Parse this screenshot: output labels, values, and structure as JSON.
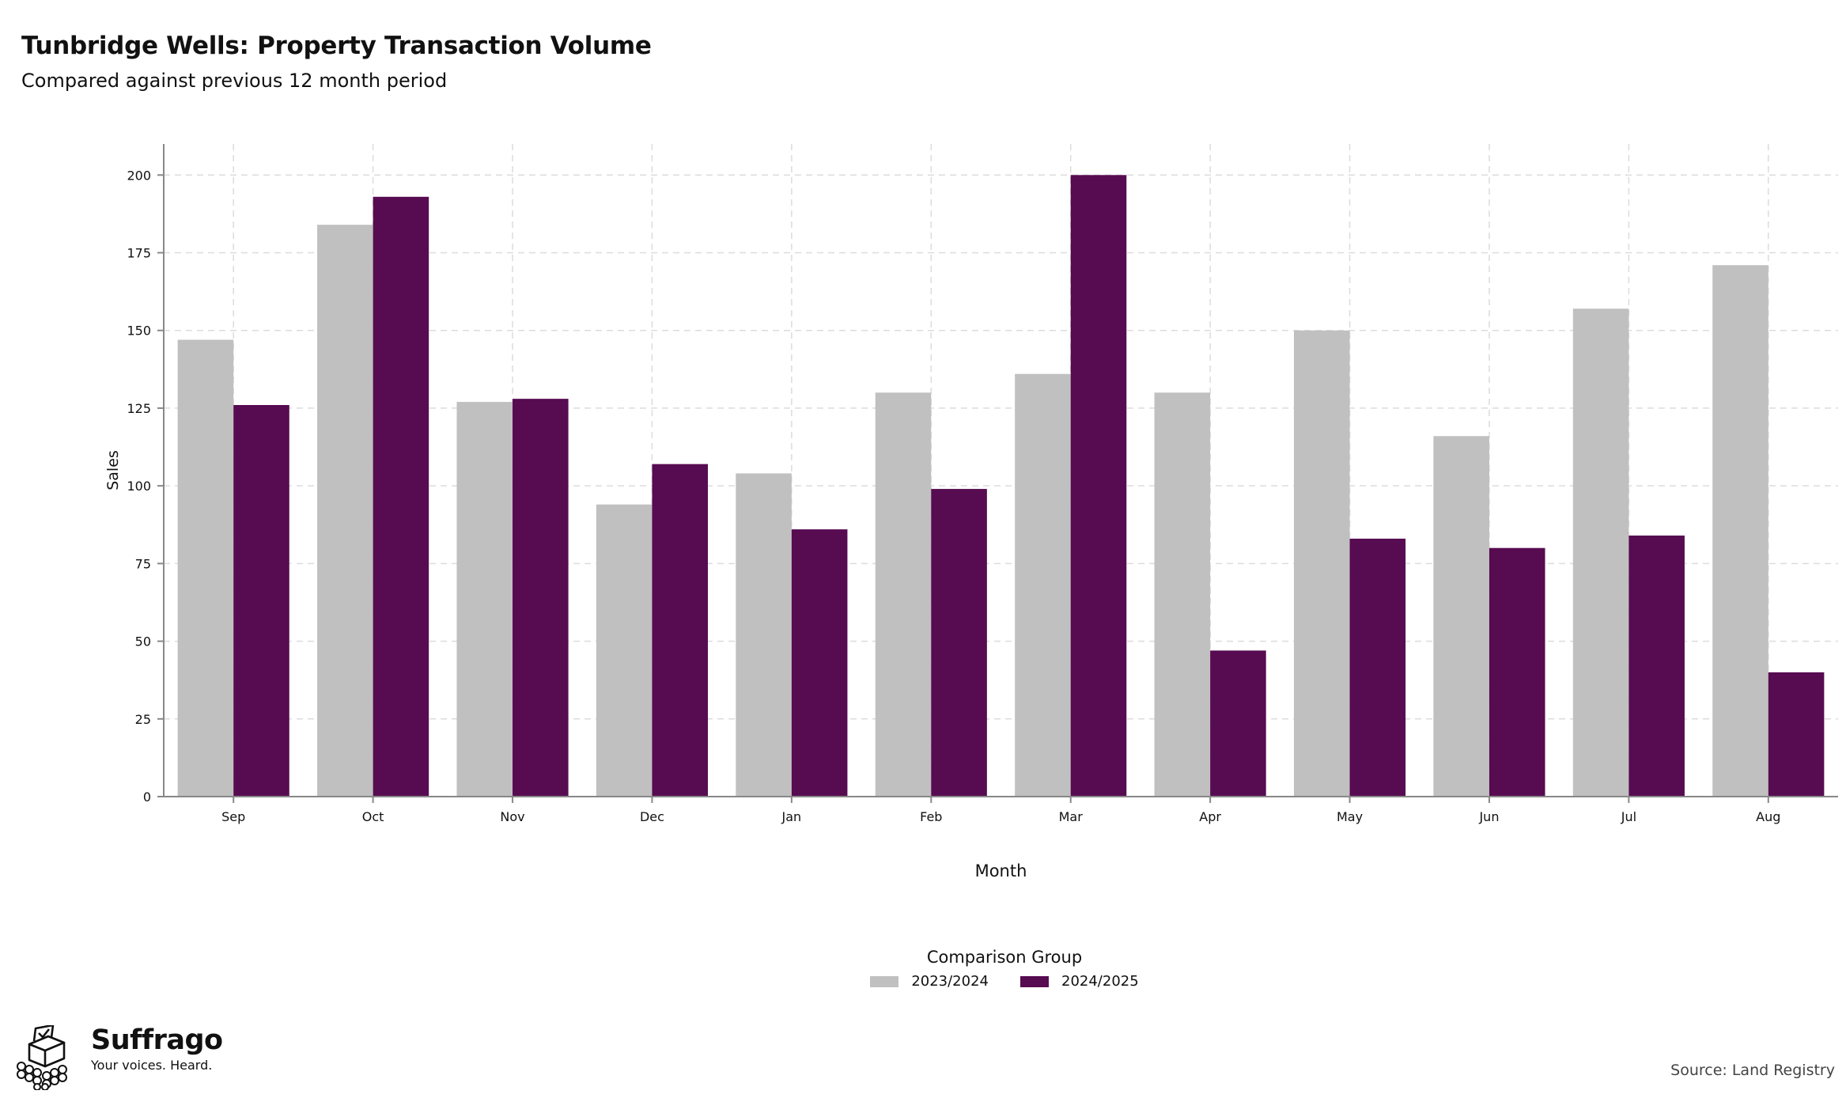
{
  "title": "Tunbridge Wells: Property Transaction Volume",
  "subtitle": "Compared against previous 12 month period",
  "brand": {
    "name": "Suffrago",
    "tagline": "Your voices. Heard.",
    "logo": "ballot-box-icon"
  },
  "source": "Source: Land Registry",
  "legend": {
    "title": "Comparison Group"
  },
  "colors": {
    "series_0": "#c0c0c0",
    "series_1": "#570b51",
    "grid": "#dcdcdc",
    "axis": "#888888"
  },
  "chart_data": {
    "type": "bar",
    "categories": [
      "Sep",
      "Oct",
      "Nov",
      "Dec",
      "Jan",
      "Feb",
      "Mar",
      "Apr",
      "May",
      "Jun",
      "Jul",
      "Aug"
    ],
    "series": [
      {
        "name": "2023/2024",
        "values": [
          147,
          184,
          127,
          94,
          104,
          130,
          136,
          130,
          150,
          116,
          157,
          171
        ]
      },
      {
        "name": "2024/2025",
        "values": [
          126,
          193,
          128,
          107,
          86,
          99,
          200,
          47,
          83,
          80,
          84,
          40
        ]
      }
    ],
    "xlabel": "Month",
    "ylabel": "Sales",
    "ylim": [
      0,
      210
    ],
    "yticks": [
      0,
      25,
      50,
      75,
      100,
      125,
      150,
      175,
      200
    ],
    "grid": true,
    "legend_position": "bottom"
  }
}
